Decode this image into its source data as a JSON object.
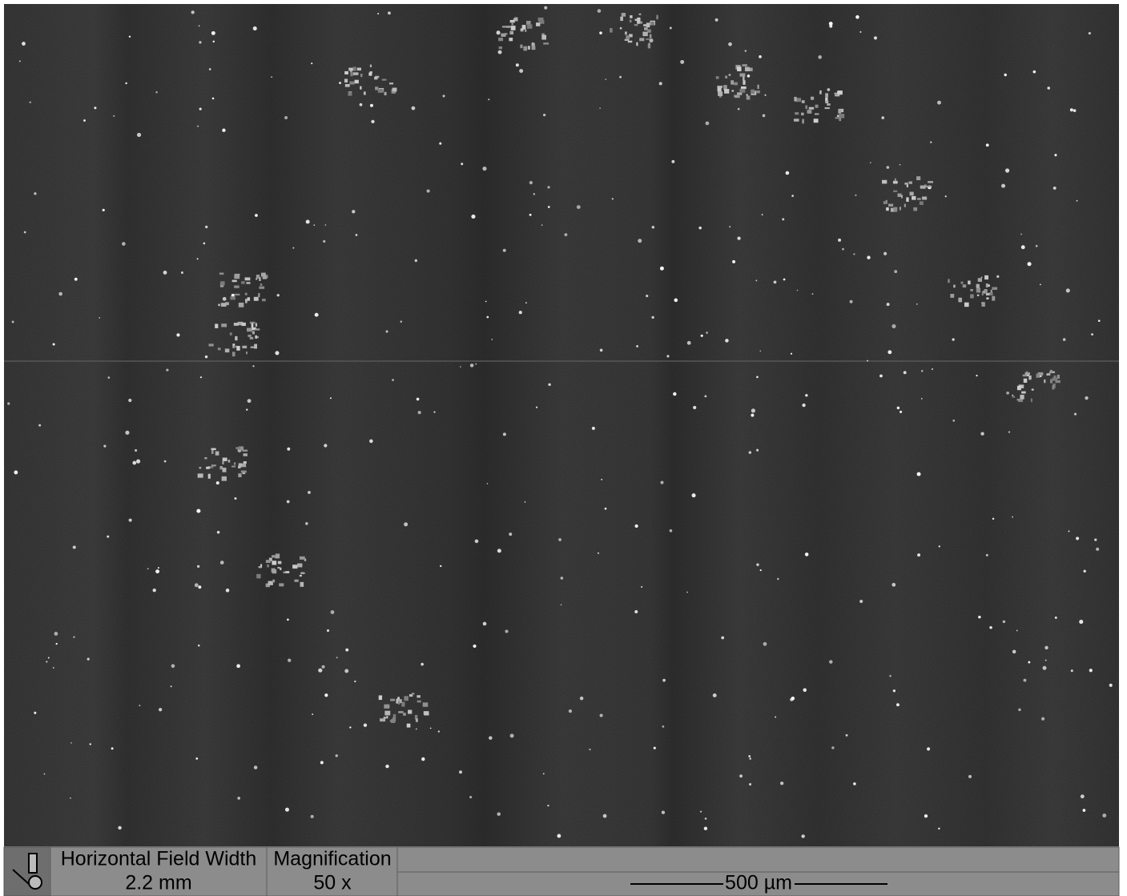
{
  "databar": {
    "hfw_label": "Horizontal Field Width",
    "hfw_value": "2.2 mm",
    "mag_label": "Magnification",
    "mag_value": "50 x",
    "scale_label": "500 µm"
  }
}
